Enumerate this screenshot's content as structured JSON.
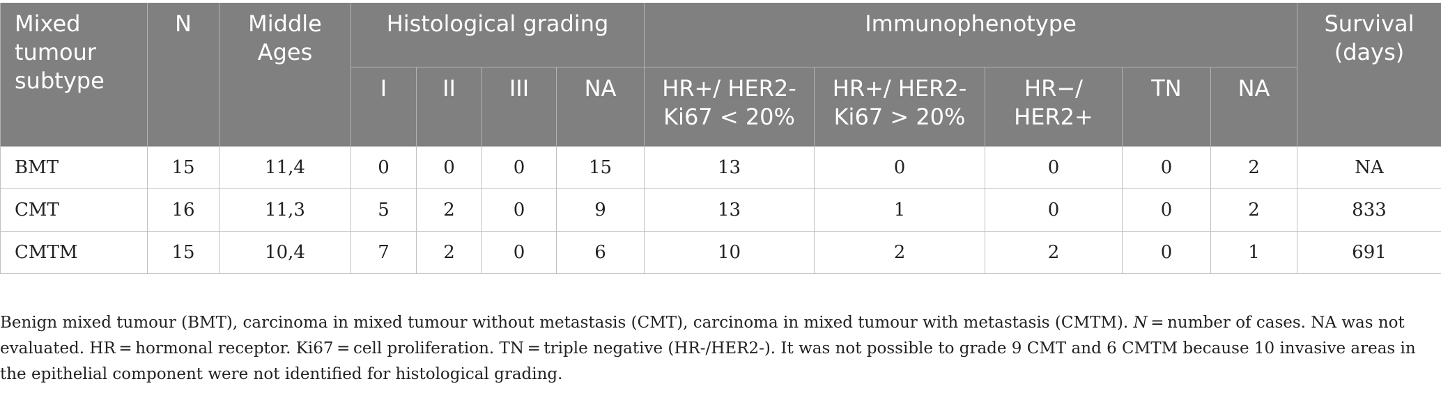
{
  "table": {
    "header": {
      "subtype": "Mixed tumour subtype",
      "n": "N",
      "middle_ages": "Middle Ages",
      "histological_grading": "Histological grading",
      "immunophenotype": "Immunophenotype",
      "survival": "Survival (days)",
      "grading_cols": [
        "I",
        "II",
        "III",
        "NA"
      ],
      "immuno_cols": [
        "HR+/ HER2- Ki67 < 20%",
        "HR+/ HER2- Ki67 > 20%",
        "HR−/ HER2+",
        "TN",
        "NA"
      ]
    },
    "rows": [
      {
        "subtype": "BMT",
        "n": "15",
        "middle_ages": "11,4",
        "g1": "0",
        "g2": "0",
        "g3": "0",
        "gna": "15",
        "i1": "13",
        "i2": "0",
        "i3": "0",
        "tn": "0",
        "ina": "2",
        "survival": "NA"
      },
      {
        "subtype": "CMT",
        "n": "16",
        "middle_ages": "11,3",
        "g1": "5",
        "g2": "2",
        "g3": "0",
        "gna": "9",
        "i1": "13",
        "i2": "1",
        "i3": "0",
        "tn": "0",
        "ina": "2",
        "survival": "833"
      },
      {
        "subtype": "CMTM",
        "n": "15",
        "middle_ages": "10,4",
        "g1": "7",
        "g2": "2",
        "g3": "0",
        "gna": "6",
        "i1": "10",
        "i2": "2",
        "i3": "2",
        "tn": "0",
        "ina": "1",
        "survival": "691"
      }
    ]
  },
  "caption": {
    "part1": "Benign mixed tumour (BMT), carcinoma in mixed tumour without metastasis (CMT), carcinoma in mixed tumour with metastasis (CMTM). ",
    "n_symbol": "N",
    "part2": " = number of cases. NA was not evaluated. HR = hormonal receptor. Ki67 = cell proliferation. TN = triple negative (HR-/HER2-). It was not possible to grade 9 CMT and 6 CMTM because 10 invasive areas in the epithelial component were not identified for histological grading."
  },
  "colors": {
    "header_bg": "#808080",
    "header_text": "#ffffff",
    "body_text": "#222222",
    "border": "#c0c0c0"
  }
}
